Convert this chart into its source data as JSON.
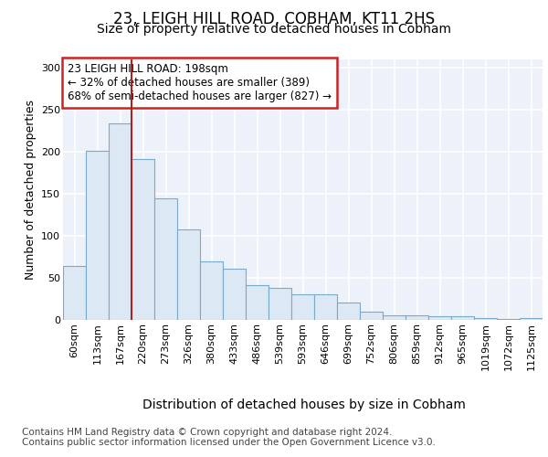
{
  "title": "23, LEIGH HILL ROAD, COBHAM, KT11 2HS",
  "subtitle": "Size of property relative to detached houses in Cobham",
  "xlabel": "Distribution of detached houses by size in Cobham",
  "ylabel": "Number of detached properties",
  "categories": [
    "60sqm",
    "113sqm",
    "167sqm",
    "220sqm",
    "273sqm",
    "326sqm",
    "380sqm",
    "433sqm",
    "486sqm",
    "539sqm",
    "593sqm",
    "646sqm",
    "699sqm",
    "752sqm",
    "806sqm",
    "859sqm",
    "912sqm",
    "965sqm",
    "1019sqm",
    "1072sqm",
    "1125sqm"
  ],
  "values": [
    64,
    201,
    234,
    191,
    145,
    108,
    70,
    61,
    41,
    38,
    31,
    31,
    21,
    10,
    5,
    5,
    4,
    4,
    2,
    1,
    2
  ],
  "bar_color": "#dde8f5",
  "bar_edge_color": "#7aaaca",
  "marker_line_color": "#aa2222",
  "annotation_text": "23 LEIGH HILL ROAD: 198sqm\n← 32% of detached houses are smaller (389)\n68% of semi-detached houses are larger (827) →",
  "annotation_box_color": "#ffffff",
  "annotation_box_edge": "#cc2222",
  "ylim": [
    0,
    310
  ],
  "yticks": [
    0,
    50,
    100,
    150,
    200,
    250,
    300
  ],
  "background_color": "#edf2fa",
  "grid_color": "#ffffff",
  "footer": "Contains HM Land Registry data © Crown copyright and database right 2024.\nContains public sector information licensed under the Open Government Licence v3.0.",
  "title_fontsize": 12,
  "subtitle_fontsize": 10,
  "xlabel_fontsize": 10,
  "ylabel_fontsize": 9,
  "tick_fontsize": 8,
  "annotation_fontsize": 8.5,
  "footer_fontsize": 7.5
}
